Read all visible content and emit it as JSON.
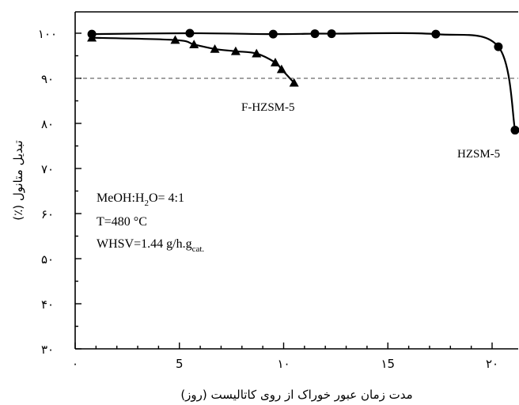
{
  "chart_data": {
    "type": "line",
    "xlabel": "مدت زمان عبور خوراک از روی کاتالیست (روز)",
    "ylabel": "تبدیل متانول (٪)",
    "xlim": [
      0,
      21.5
    ],
    "ylim": [
      30,
      105
    ],
    "x_ticks": [
      {
        "value": 0,
        "label": "٠"
      },
      {
        "value": 5,
        "label": "5"
      },
      {
        "value": 10,
        "label": "١٠"
      },
      {
        "value": 15,
        "label": "١5"
      },
      {
        "value": 20,
        "label": "٢٠"
      }
    ],
    "y_ticks": [
      {
        "value": 30,
        "label": "٣٠"
      },
      {
        "value": 40,
        "label": "۴٠"
      },
      {
        "value": 50,
        "label": "۵٠"
      },
      {
        "value": 60,
        "label": "۶٠"
      },
      {
        "value": 70,
        "label": "٧٠"
      },
      {
        "value": 80,
        "label": "٨٠"
      },
      {
        "value": 90,
        "label": "٩٠"
      },
      {
        "value": 100,
        "label": "١٠٠"
      }
    ],
    "reference_line": {
      "y": 90,
      "style": "dashed"
    },
    "grid": false,
    "series": [
      {
        "name": "HZSM-5",
        "marker": "circle",
        "x": [
          0.8,
          5.5,
          9.5,
          11.5,
          12.3,
          17.3,
          20.3,
          21.1
        ],
        "y": [
          99.8,
          100,
          99.8,
          99.9,
          99.9,
          99.8,
          97,
          78.5
        ]
      },
      {
        "name": "F-HZSM-5",
        "marker": "triangle",
        "x": [
          0.8,
          4.8,
          5.7,
          6.7,
          7.7,
          8.7,
          9.6,
          9.9,
          10.5
        ],
        "y": [
          99,
          98.5,
          97.5,
          96.5,
          96,
          95.5,
          93.5,
          92,
          89
        ]
      }
    ],
    "annotations": {
      "cond_feed": "MeOH:H",
      "cond_feed_sub": "2",
      "cond_feed_rest": "O=  4:1",
      "cond_temp": "T=480 °C",
      "cond_whsv": "WHSV=1.44  g/h.g",
      "cond_whsv_sub": "cat."
    }
  }
}
